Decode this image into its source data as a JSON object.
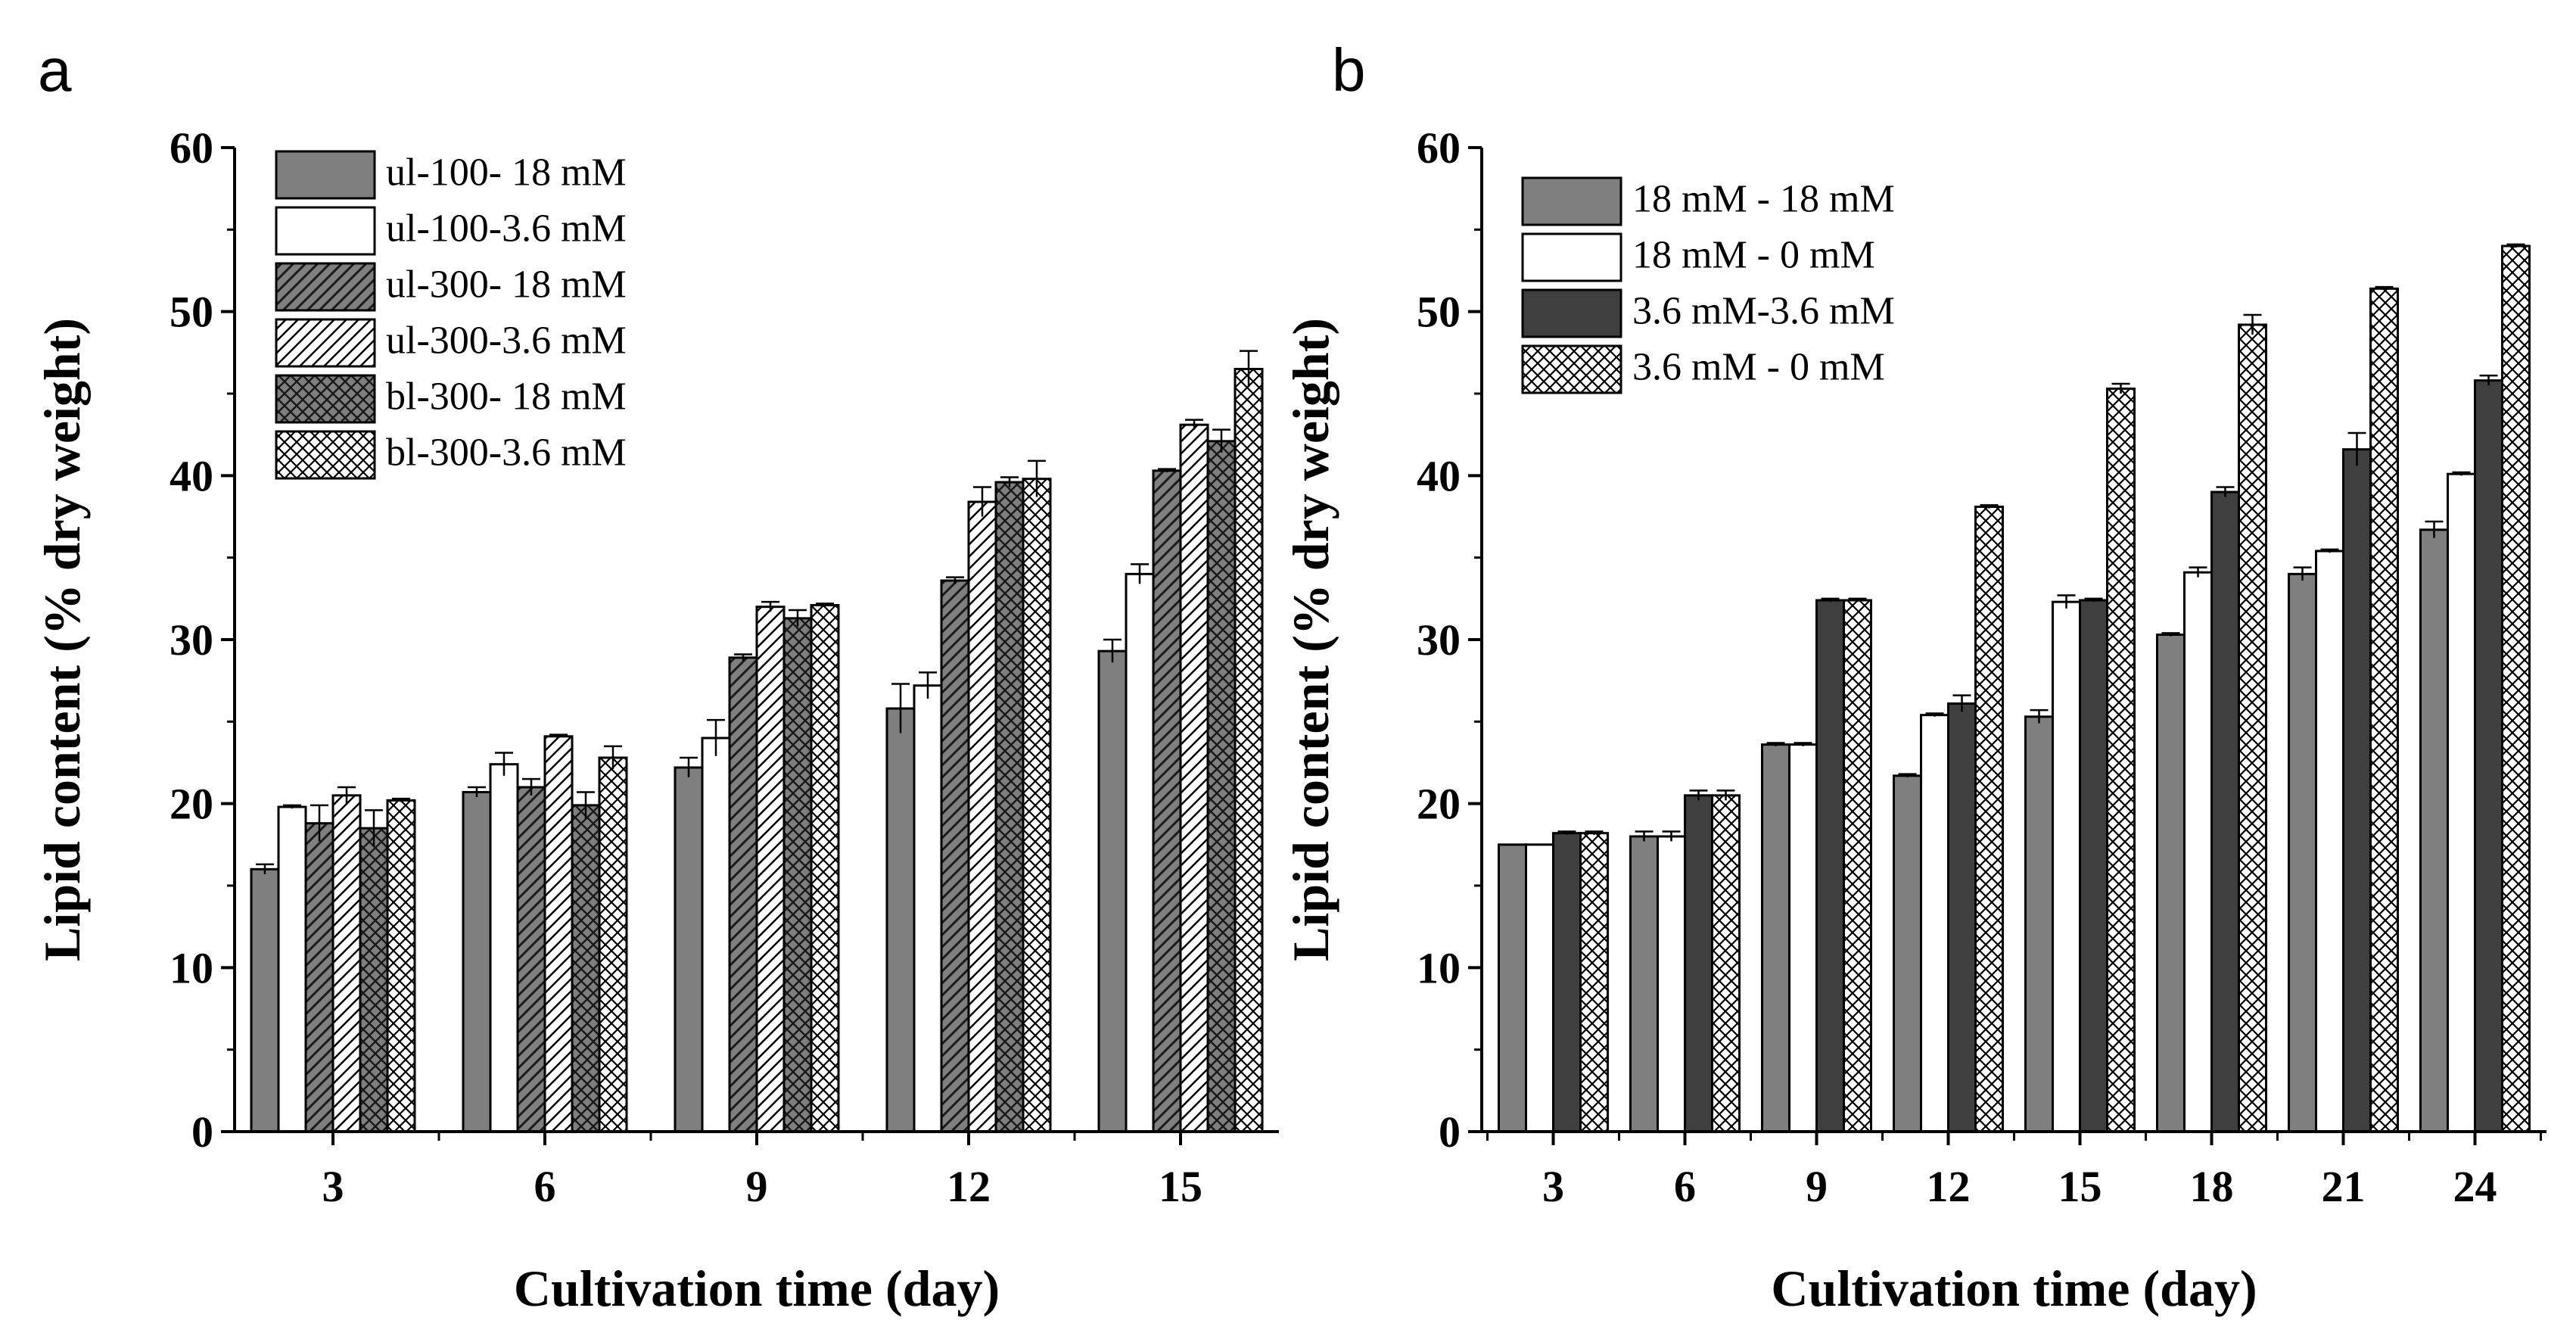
{
  "colors": {
    "gray": "#7f7f7f",
    "dark": "#3f3f3f",
    "white": "#ffffff",
    "ink": "#000000"
  },
  "chart_data": [
    {
      "panel_label": "a",
      "type": "bar",
      "xlabel": "Cultivation time (day)",
      "ylabel": "Lipid content (% dry weight)",
      "ylim": [
        0,
        60
      ],
      "yticks": [
        0,
        10,
        20,
        30,
        40,
        50,
        60
      ],
      "categories": [
        "3",
        "6",
        "9",
        "12",
        "15"
      ],
      "legend_position": "top-left",
      "series": [
        {
          "name": "ul-100- 18 mM",
          "fill": "gray",
          "pattern": "none",
          "values": [
            16.0,
            20.7,
            22.2,
            25.8,
            29.3
          ],
          "errors": [
            0.3,
            0.3,
            0.6,
            1.5,
            0.7
          ]
        },
        {
          "name": "ul-100-3.6 mM",
          "fill": "white",
          "pattern": "none",
          "values": [
            19.8,
            22.4,
            24.0,
            27.2,
            34.0
          ],
          "errors": [
            0.1,
            0.7,
            1.1,
            0.8,
            0.6
          ]
        },
        {
          "name": "ul-300- 18 mM",
          "fill": "gray",
          "pattern": "hatch",
          "values": [
            18.8,
            21.0,
            28.9,
            33.6,
            40.3
          ],
          "errors": [
            1.1,
            0.5,
            0.2,
            0.2,
            0.1
          ]
        },
        {
          "name": "ul-300-3.6 mM",
          "fill": "white",
          "pattern": "hatch",
          "values": [
            20.5,
            24.1,
            32.0,
            38.4,
            43.1
          ],
          "errors": [
            0.5,
            0.1,
            0.3,
            0.9,
            0.3
          ]
        },
        {
          "name": "bl-300- 18 mM",
          "fill": "gray",
          "pattern": "cross",
          "values": [
            18.5,
            19.9,
            31.3,
            39.6,
            42.1
          ],
          "errors": [
            1.1,
            0.8,
            0.5,
            0.3,
            0.7
          ]
        },
        {
          "name": "bl-300-3.6 mM",
          "fill": "white",
          "pattern": "cross",
          "values": [
            20.2,
            22.8,
            32.1,
            39.8,
            46.5
          ],
          "errors": [
            0.1,
            0.7,
            0.1,
            1.1,
            1.1
          ]
        }
      ]
    },
    {
      "panel_label": "b",
      "type": "bar",
      "xlabel": "Cultivation time (day)",
      "ylabel": "Lipid content (% dry weight)",
      "ylim": [
        0,
        60
      ],
      "yticks": [
        0,
        10,
        20,
        30,
        40,
        50,
        60
      ],
      "categories": [
        "3",
        "6",
        "9",
        "12",
        "15",
        "18",
        "21",
        "24"
      ],
      "legend_position": "top-left",
      "series": [
        {
          "name": "18 mM - 18 mM",
          "fill": "gray",
          "pattern": "none",
          "values": [
            17.5,
            18.0,
            23.6,
            21.7,
            25.3,
            30.3,
            34.0,
            36.7
          ],
          "errors": [
            0.0,
            0.3,
            0.1,
            0.1,
            0.4,
            0.1,
            0.4,
            0.5
          ]
        },
        {
          "name": "18 mM  -  0 mM",
          "fill": "white",
          "pattern": "none",
          "values": [
            17.5,
            18.0,
            23.6,
            25.4,
            32.3,
            34.1,
            35.4,
            40.1
          ],
          "errors": [
            0.0,
            0.3,
            0.1,
            0.1,
            0.4,
            0.3,
            0.1,
            0.1
          ]
        },
        {
          "name": "3.6 mM-3.6 mM",
          "fill": "dark",
          "pattern": "none",
          "values": [
            18.2,
            20.5,
            32.4,
            26.1,
            32.4,
            39.0,
            41.6,
            45.8
          ],
          "errors": [
            0.1,
            0.3,
            0.1,
            0.5,
            0.1,
            0.3,
            1.0,
            0.3
          ]
        },
        {
          "name": "3.6 mM -  0 mM",
          "fill": "white",
          "pattern": "cross",
          "values": [
            18.2,
            20.5,
            32.4,
            38.1,
            45.3,
            49.2,
            51.4,
            54.0
          ],
          "errors": [
            0.1,
            0.3,
            0.1,
            0.1,
            0.3,
            0.6,
            0.1,
            0.1
          ]
        }
      ]
    }
  ]
}
